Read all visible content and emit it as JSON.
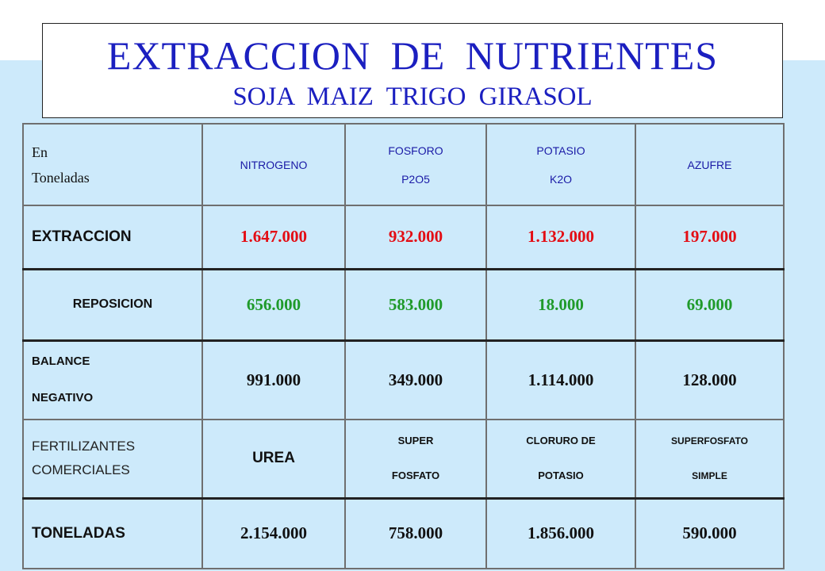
{
  "title": {
    "main": "EXTRACCION  DE  NUTRIENTES",
    "sub": "SOJA  MAIZ  TRIGO  GIRASOL"
  },
  "colors": {
    "title": "#1b1fc0",
    "header_text": "#1a1aa6",
    "extraccion_values": "#e30d14",
    "reposicion_values": "#1f9a2a",
    "background_band": "#cdeafb"
  },
  "table": {
    "corner": {
      "line1": "En",
      "line2": "Toneladas"
    },
    "columns": [
      {
        "line1": "NITROGENO",
        "line2": ""
      },
      {
        "line1": "FOSFORO",
        "line2": "P2O5"
      },
      {
        "line1": "POTASIO",
        "line2": "K2O"
      },
      {
        "line1": "AZUFRE",
        "line2": ""
      }
    ],
    "rows": {
      "extraccion": {
        "label": "EXTRACCION",
        "values": [
          "1.647.000",
          "932.000",
          "1.132.000",
          "197.000"
        ]
      },
      "reposicion": {
        "label": "REPOSICION",
        "values": [
          "656.000",
          "583.000",
          "18.000",
          "69.000"
        ]
      },
      "balance": {
        "label_line1": "BALANCE",
        "label_line2": "NEGATIVO",
        "values": [
          "991.000",
          "349.000",
          "1.114.000",
          "128.000"
        ]
      },
      "fertilizantes": {
        "label_line1": "FERTILIZANTES",
        "label_line2": "COMERCIALES",
        "items": [
          {
            "line1": "UREA",
            "line2": ""
          },
          {
            "line1": "SUPER",
            "line2": "FOSFATO"
          },
          {
            "line1": "CLORURO DE",
            "line2": "POTASIO"
          },
          {
            "line1": "SUPERFOSFATO",
            "line2": "SIMPLE"
          }
        ]
      },
      "toneladas": {
        "label": "TONELADAS",
        "values": [
          "2.154.000",
          "758.000",
          "1.856.000",
          "590.000"
        ]
      }
    }
  }
}
